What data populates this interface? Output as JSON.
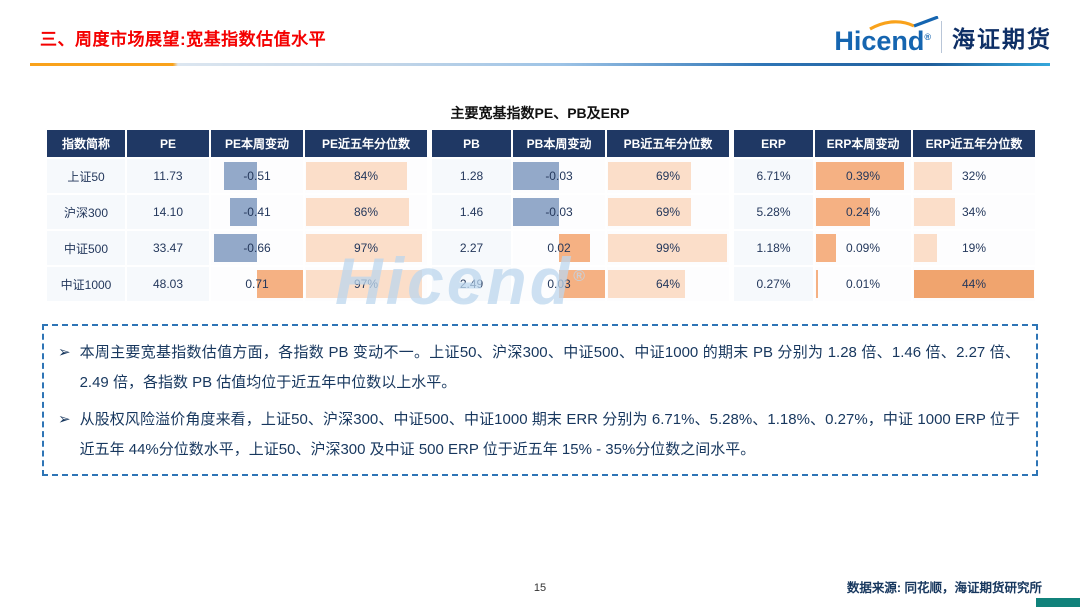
{
  "slide": {
    "title": "三、周度市场展望:宽基指数估值水平",
    "page_number": "15",
    "source_note": "数据来源: 同花顺，海证期货研究所"
  },
  "logo": {
    "latin": "Hicend",
    "reg": "®",
    "cn": "海证期货"
  },
  "watermark": {
    "text": "Hicend",
    "reg": "®"
  },
  "table": {
    "title": "主要宽基指数PE、PB及ERP",
    "headers": [
      "指数简称",
      "PE",
      "PE本周变动",
      "PE近五年分位数",
      "PB",
      "PB本周变动",
      "PB近五年分位数",
      "ERP",
      "ERP本周变动",
      "ERP近五年分位数"
    ],
    "rows": [
      {
        "name": "上证50",
        "pe": "11.73",
        "pe_chg": {
          "text": "-0.51",
          "value": -0.51
        },
        "pe_pct": {
          "text": "84%",
          "value": 84
        },
        "pb": "1.28",
        "pb_chg": {
          "text": "-0.03",
          "value": -0.03
        },
        "pb_pct": {
          "text": "69%",
          "value": 69
        },
        "erp": "6.71%",
        "erp_chg": {
          "text": "0.39%",
          "value": 0.39
        },
        "erp_pct": {
          "text": "32%",
          "value": 32
        }
      },
      {
        "name": "沪深300",
        "pe": "14.10",
        "pe_chg": {
          "text": "-0.41",
          "value": -0.41
        },
        "pe_pct": {
          "text": "86%",
          "value": 86
        },
        "pb": "1.46",
        "pb_chg": {
          "text": "-0.03",
          "value": -0.03
        },
        "pb_pct": {
          "text": "69%",
          "value": 69
        },
        "erp": "5.28%",
        "erp_chg": {
          "text": "0.24%",
          "value": 0.24
        },
        "erp_pct": {
          "text": "34%",
          "value": 34
        }
      },
      {
        "name": "中证500",
        "pe": "33.47",
        "pe_chg": {
          "text": "-0.66",
          "value": -0.66
        },
        "pe_pct": {
          "text": "97%",
          "value": 97
        },
        "pb": "2.27",
        "pb_chg": {
          "text": "0.02",
          "value": 0.02
        },
        "pb_pct": {
          "text": "99%",
          "value": 99
        },
        "erp": "1.18%",
        "erp_chg": {
          "text": "0.09%",
          "value": 0.09
        },
        "erp_pct": {
          "text": "19%",
          "value": 19
        }
      },
      {
        "name": "中证1000",
        "pe": "48.03",
        "pe_chg": {
          "text": "0.71",
          "value": 0.71
        },
        "pe_pct": {
          "text": "97%",
          "value": 97
        },
        "pb": "2.49",
        "pb_chg": {
          "text": "0.03",
          "value": 0.03
        },
        "pb_pct": {
          "text": "64%",
          "value": 64
        },
        "erp": "0.27%",
        "erp_chg": {
          "text": "0.01%",
          "value": 0.01
        },
        "erp_pct": {
          "text": "44%",
          "value": 44
        }
      }
    ]
  },
  "notes": {
    "bullet_char": "➢",
    "items": [
      "本周主要宽基指数估值方面，各指数 PB 变动不一。上证50、沪深300、中证500、中证1000 的期末 PB 分别为 1.28 倍、1.46 倍、2.27 倍、2.49 倍，各指数 PB 估值均位于近五年中位数以上水平。",
      "从股权风险溢价角度来看，上证50、沪深300、中证500、中证1000 期末 ERR 分别为 6.71%、5.28%、1.18%、0.27%，中证 1000 ERP 位于近五年 44%分位数水平，上证50、沪深300 及中证 500 ERP 位于近五年 15% - 35%分位数之间水平。"
    ]
  },
  "colors": {
    "title_red": "#F40000",
    "header_navy": "#1F3864",
    "bar_negative": "#93A9C9",
    "bar_positive": "#F5B183",
    "bar_percentile": "#FBDEC9",
    "bar_percentile_strong": "#F0A46E",
    "accent_blue": "#2E75B6",
    "accent_orange": "#F9A21B",
    "watermark_blue": "#BDD7EE",
    "corner_teal": "#11827B"
  }
}
